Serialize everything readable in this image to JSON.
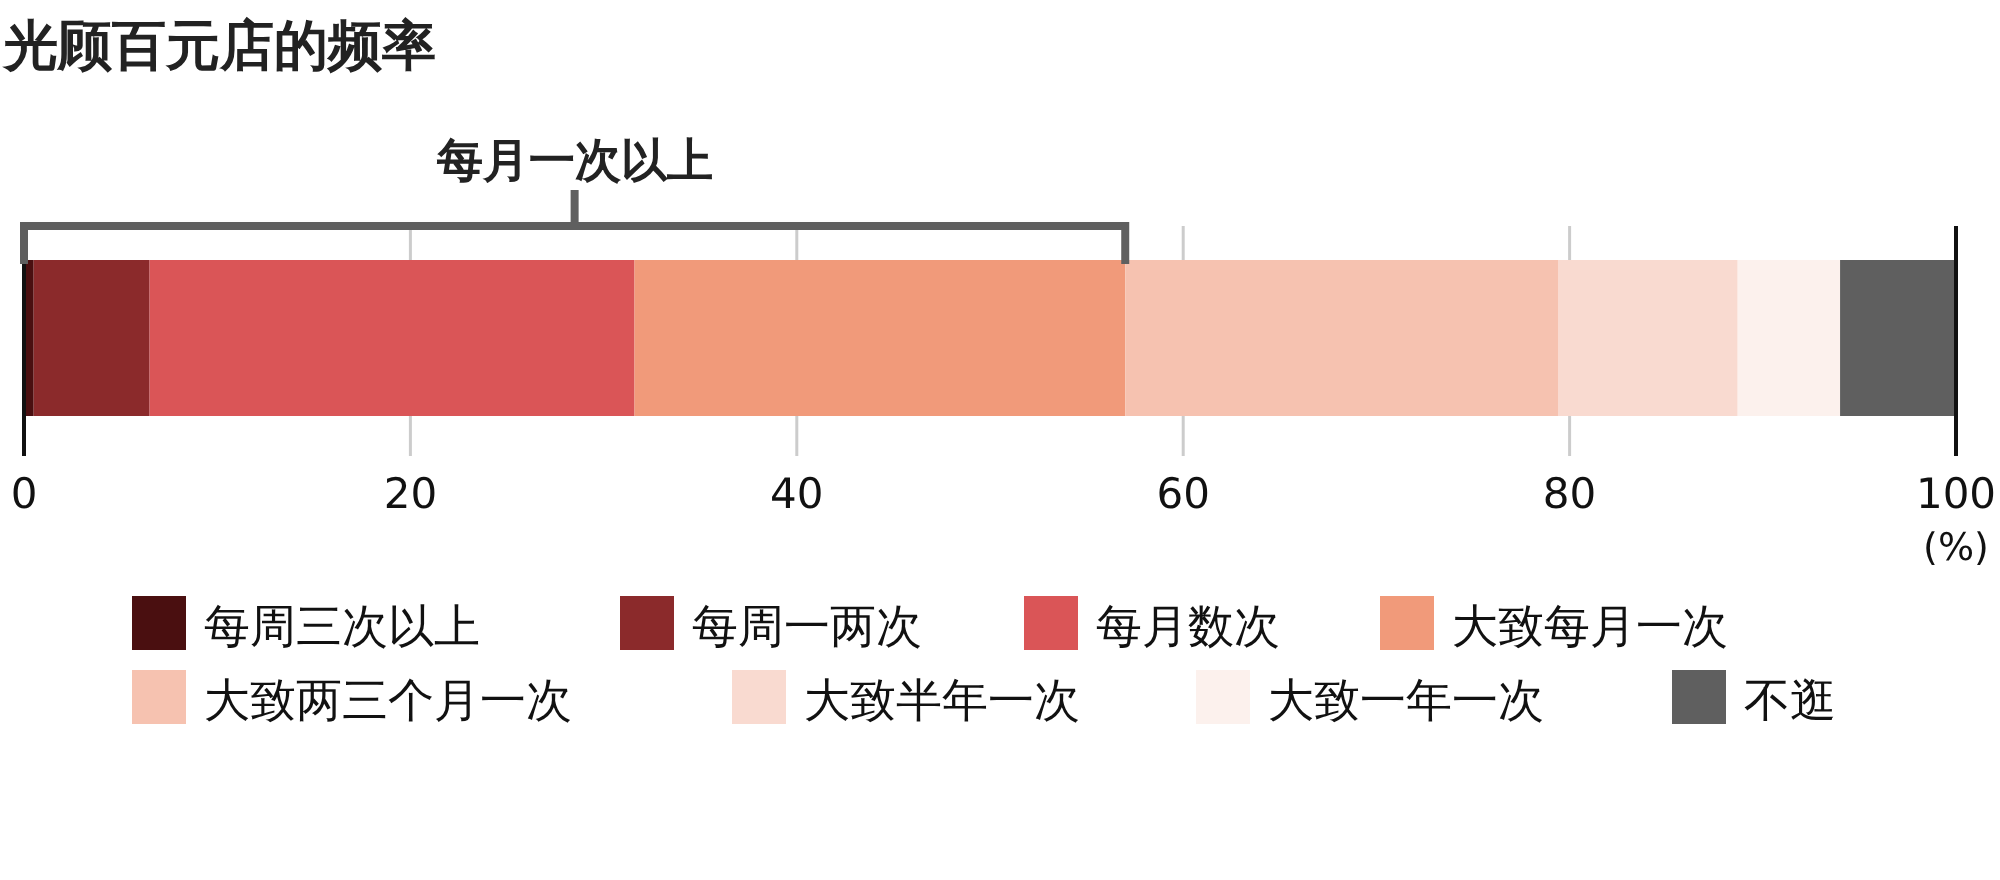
{
  "chart_data": {
    "type": "bar",
    "orientation": "horizontal",
    "stacked": true,
    "title": "光顾百元店的频率",
    "xlabel": "(%)",
    "categories": [
      null
    ],
    "series": [
      {
        "name": "每周三次以上",
        "color": "#4a0f10",
        "values": [
          0.5
        ]
      },
      {
        "name": "每周一两次",
        "color": "#8b2a2b",
        "values": [
          6.0
        ]
      },
      {
        "name": "每月数次",
        "color": "#da5557",
        "values": [
          25.1
        ]
      },
      {
        "name": "大致每月一次",
        "color": "#f19a7a",
        "values": [
          25.4
        ]
      },
      {
        "name": "大致两三个月一次",
        "color": "#f6c2b0",
        "values": [
          22.4
        ]
      },
      {
        "name": "大致半年一次",
        "color": "#f9dad0",
        "values": [
          9.3
        ]
      },
      {
        "name": "大致一年一次",
        "color": "#fcf1ed",
        "values": [
          5.3
        ]
      },
      {
        "name": "不逛",
        "color": "#5f5f5f",
        "values": [
          6.0
        ]
      }
    ],
    "xlim": [
      0,
      100
    ],
    "xticks": [
      0,
      20,
      40,
      60,
      80,
      100
    ],
    "grid": "x",
    "legend": "bottom",
    "annotations": [
      "每月一次以上"
    ]
  }
}
